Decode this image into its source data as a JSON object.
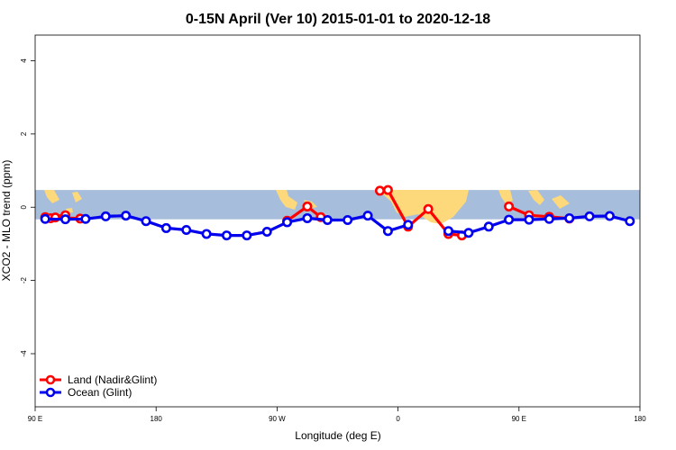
{
  "chart_data": {
    "type": "line",
    "title": "0-15N April (Ver 10)   2015-01-01 to 2020-12-18",
    "xlabel": "Longitude (deg E)",
    "ylabel": "XCO2 - MLO trend (ppm)",
    "xlim": [
      90,
      540
    ],
    "ylim": [
      -5.45,
      4.7
    ],
    "x_ticks": [
      {
        "value": 90,
        "label": "90 E"
      },
      {
        "value": 180,
        "label": "180"
      },
      {
        "value": 270,
        "label": "90 W"
      },
      {
        "value": 360,
        "label": "0"
      },
      {
        "value": 450,
        "label": "90 E"
      },
      {
        "value": 540,
        "label": "180"
      }
    ],
    "y_ticks": [
      -4,
      -2,
      0,
      2,
      4
    ],
    "map_band": {
      "lat_range": "0-15N",
      "y_range": [
        -0.33,
        0.47
      ],
      "ocean_color": "#a6bddb",
      "land_color": "#fdd97c"
    },
    "legend_position": "bottom-left",
    "series": [
      {
        "name": "Land (Nadir&Glint)",
        "color": "#ff0000",
        "segments": [
          [
            [
              97.5,
              -0.27
            ],
            [
              112.5,
              -0.22
            ],
            [
              101.5,
              -0.3
            ],
            [
              105,
              -0.28
            ],
            [
              123.5,
              -0.31
            ]
          ],
          [
            [
              277.5,
              -0.37
            ],
            [
              292.5,
              0.02
            ],
            [
              302.5,
              -0.27
            ]
          ],
          [
            [
              346.5,
              0.45
            ],
            [
              352.5,
              0.47
            ],
            [
              367.5,
              -0.53
            ],
            [
              382.5,
              -0.05
            ],
            [
              397.5,
              -0.73
            ],
            [
              407.5,
              -0.77
            ]
          ],
          [
            [
              442.5,
              0.02
            ],
            [
              457.5,
              -0.22
            ],
            [
              472.5,
              -0.26
            ],
            [
              487.5,
              -0.31
            ]
          ]
        ]
      },
      {
        "name": "Ocean (Glint)",
        "color": "#0000ee",
        "segments": [
          [
            [
              97.5,
              -0.32
            ],
            [
              112.5,
              -0.33
            ],
            [
              127.5,
              -0.32
            ],
            [
              142.5,
              -0.25
            ],
            [
              157.5,
              -0.23
            ],
            [
              172.5,
              -0.38
            ],
            [
              187.5,
              -0.57
            ],
            [
              202.5,
              -0.62
            ],
            [
              217.5,
              -0.73
            ],
            [
              232.5,
              -0.77
            ],
            [
              247.5,
              -0.77
            ],
            [
              262.5,
              -0.67
            ],
            [
              277.5,
              -0.41
            ],
            [
              292.5,
              -0.3
            ],
            [
              307.5,
              -0.35
            ],
            [
              322.5,
              -0.35
            ],
            [
              337.5,
              -0.23
            ],
            [
              352.5,
              -0.65
            ],
            [
              367.5,
              -0.48
            ]
          ],
          [
            [
              397.5,
              -0.65
            ],
            [
              412.5,
              -0.7
            ],
            [
              427.5,
              -0.53
            ],
            [
              442.5,
              -0.34
            ],
            [
              457.5,
              -0.34
            ],
            [
              472.5,
              -0.32
            ],
            [
              487.5,
              -0.3
            ],
            [
              502.5,
              -0.25
            ],
            [
              517.5,
              -0.24
            ],
            [
              532.5,
              -0.38
            ]
          ]
        ]
      }
    ]
  }
}
